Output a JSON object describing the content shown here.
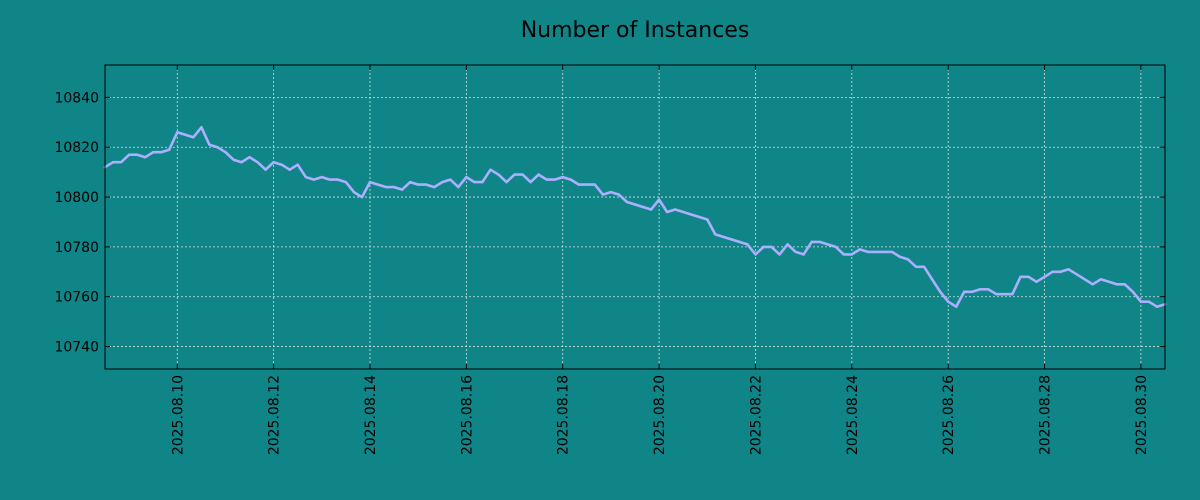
{
  "colors": {
    "background": "#108587",
    "axes_background": "#108587",
    "line": "#aab0ff",
    "grid": "#cfe0e0",
    "text": "#000000"
  },
  "chart_data": {
    "type": "line",
    "title": "Number of Instances",
    "xlabel": "",
    "ylabel": "",
    "grid": true,
    "legend": "none",
    "x_ticks": [
      "2025.08.10",
      "2025.08.12",
      "2025.08.14",
      "2025.08.16",
      "2025.08.18",
      "2025.08.20",
      "2025.08.22",
      "2025.08.24",
      "2025.08.26",
      "2025.08.28",
      "2025.08.30"
    ],
    "y_ticks": [
      "10740",
      "10760",
      "10780",
      "10800",
      "10820",
      "10840"
    ],
    "xlim": [
      "2025.08.08 12:00",
      "2025.08.30 12:00"
    ],
    "ylim": [
      10731,
      10853
    ],
    "series": [
      {
        "x": [
          "2025.08.08 12:00",
          "2025.08.08 16:00",
          "2025.08.08 20:00",
          "2025.08.09 00:00",
          "2025.08.09 04:00",
          "2025.08.09 08:00",
          "2025.08.09 12:00",
          "2025.08.09 16:00",
          "2025.08.09 20:00",
          "2025.08.10 00:00",
          "2025.08.10 04:00",
          "2025.08.10 08:00",
          "2025.08.10 12:00",
          "2025.08.10 16:00",
          "2025.08.10 20:00",
          "2025.08.11 00:00",
          "2025.08.11 04:00",
          "2025.08.11 08:00",
          "2025.08.11 12:00",
          "2025.08.11 16:00",
          "2025.08.11 20:00",
          "2025.08.12 00:00",
          "2025.08.12 04:00",
          "2025.08.12 08:00",
          "2025.08.12 12:00",
          "2025.08.12 16:00",
          "2025.08.12 20:00",
          "2025.08.13 00:00",
          "2025.08.13 04:00",
          "2025.08.13 08:00",
          "2025.08.13 12:00",
          "2025.08.13 16:00",
          "2025.08.13 20:00",
          "2025.08.14 00:00",
          "2025.08.14 04:00",
          "2025.08.14 08:00",
          "2025.08.14 12:00",
          "2025.08.14 16:00",
          "2025.08.14 20:00",
          "2025.08.15 00:00",
          "2025.08.15 04:00",
          "2025.08.15 08:00",
          "2025.08.15 12:00",
          "2025.08.15 16:00",
          "2025.08.15 20:00",
          "2025.08.16 00:00",
          "2025.08.16 04:00",
          "2025.08.16 08:00",
          "2025.08.16 12:00",
          "2025.08.16 16:00",
          "2025.08.16 20:00",
          "2025.08.17 00:00",
          "2025.08.17 04:00",
          "2025.08.17 08:00",
          "2025.08.17 12:00",
          "2025.08.17 16:00",
          "2025.08.17 20:00",
          "2025.08.18 00:00",
          "2025.08.18 04:00",
          "2025.08.18 08:00",
          "2025.08.18 12:00",
          "2025.08.18 16:00",
          "2025.08.18 20:00",
          "2025.08.19 00:00",
          "2025.08.19 04:00",
          "2025.08.19 08:00",
          "2025.08.19 12:00",
          "2025.08.19 16:00",
          "2025.08.19 20:00",
          "2025.08.20 00:00",
          "2025.08.20 04:00",
          "2025.08.20 08:00",
          "2025.08.20 12:00",
          "2025.08.20 16:00",
          "2025.08.20 20:00",
          "2025.08.21 00:00",
          "2025.08.21 04:00",
          "2025.08.21 08:00",
          "2025.08.21 12:00",
          "2025.08.21 16:00",
          "2025.08.21 20:00",
          "2025.08.22 00:00",
          "2025.08.22 04:00",
          "2025.08.22 08:00",
          "2025.08.22 12:00",
          "2025.08.22 16:00",
          "2025.08.22 20:00",
          "2025.08.23 00:00",
          "2025.08.23 04:00",
          "2025.08.23 08:00",
          "2025.08.23 12:00",
          "2025.08.23 16:00",
          "2025.08.23 20:00",
          "2025.08.24 00:00",
          "2025.08.24 04:00",
          "2025.08.24 08:00",
          "2025.08.24 12:00",
          "2025.08.24 16:00",
          "2025.08.24 20:00",
          "2025.08.25 00:00",
          "2025.08.25 04:00",
          "2025.08.25 08:00",
          "2025.08.25 12:00",
          "2025.08.25 16:00",
          "2025.08.25 20:00",
          "2025.08.26 00:00",
          "2025.08.26 04:00",
          "2025.08.26 08:00",
          "2025.08.26 12:00",
          "2025.08.26 16:00",
          "2025.08.26 20:00",
          "2025.08.27 00:00",
          "2025.08.27 04:00",
          "2025.08.27 08:00",
          "2025.08.27 12:00",
          "2025.08.27 16:00",
          "2025.08.27 20:00",
          "2025.08.28 00:00",
          "2025.08.28 04:00",
          "2025.08.28 08:00",
          "2025.08.28 12:00",
          "2025.08.28 16:00",
          "2025.08.28 20:00",
          "2025.08.29 00:00",
          "2025.08.29 04:00",
          "2025.08.29 08:00",
          "2025.08.29 12:00",
          "2025.08.29 16:00",
          "2025.08.29 20:00",
          "2025.08.30 00:00",
          "2025.08.30 04:00",
          "2025.08.30 08:00",
          "2025.08.30 12:00"
        ],
        "values": [
          10812,
          10814,
          10814,
          10817,
          10817,
          10816,
          10818,
          10818,
          10819,
          10826,
          10825,
          10824,
          10828,
          10821,
          10820,
          10818,
          10815,
          10814,
          10816,
          10814,
          10811,
          10814,
          10813,
          10811,
          10813,
          10808,
          10807,
          10808,
          10807,
          10807,
          10806,
          10802,
          10800,
          10806,
          10805,
          10804,
          10804,
          10803,
          10806,
          10805,
          10805,
          10804,
          10806,
          10807,
          10804,
          10808,
          10806,
          10806,
          10811,
          10809,
          10806,
          10809,
          10809,
          10806,
          10809,
          10807,
          10807,
          10808,
          10807,
          10805,
          10805,
          10805,
          10801,
          10802,
          10801,
          10798,
          10797,
          10796,
          10795,
          10799,
          10794,
          10795,
          10794,
          10793,
          10792,
          10791,
          10785,
          10784,
          10783,
          10782,
          10781,
          10777,
          10780,
          10780,
          10777,
          10781,
          10778,
          10777,
          10782,
          10782,
          10781,
          10780,
          10777,
          10777,
          10779,
          10778,
          10778,
          10778,
          10778,
          10776,
          10775,
          10772,
          10772,
          10767,
          10762,
          10758,
          10756,
          10762,
          10762,
          10763,
          10763,
          10761,
          10761,
          10761,
          10768,
          10768,
          10766,
          10768,
          10770,
          10770,
          10771,
          10769,
          10767,
          10765,
          10767,
          10766,
          10765,
          10765,
          10762,
          10758,
          10758,
          10756,
          10757
        ]
      }
    ]
  }
}
